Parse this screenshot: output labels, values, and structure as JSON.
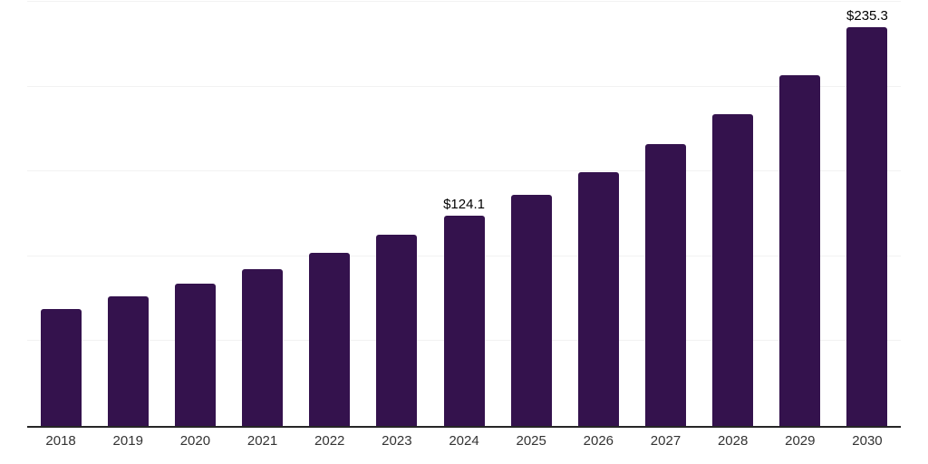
{
  "chart_data": {
    "type": "bar",
    "title": "",
    "xlabel": "",
    "ylabel": "",
    "categories": [
      "2018",
      "2019",
      "2020",
      "2021",
      "2022",
      "2023",
      "2024",
      "2025",
      "2026",
      "2027",
      "2028",
      "2029",
      "2030"
    ],
    "values": [
      68.7,
      76.2,
      83.8,
      92.3,
      101.9,
      112.5,
      124.1,
      136.3,
      149.7,
      166.0,
      183.7,
      206.8,
      235.3
    ],
    "value_labels": [
      "",
      "",
      "",
      "",
      "",
      "",
      "$124.1",
      "",
      "",
      "",
      "",
      "",
      "$235.3"
    ],
    "ylim": [
      0,
      250
    ],
    "gridline_values": [
      50,
      100,
      150,
      200,
      250
    ],
    "grid": true,
    "legend_position": "none",
    "colors": {
      "bar": "#34124d",
      "gridline": "#f2f2f2",
      "axis_line": "#262626",
      "tick_label": "#333333",
      "value_label": "#000000",
      "background": "#ffffff"
    }
  }
}
